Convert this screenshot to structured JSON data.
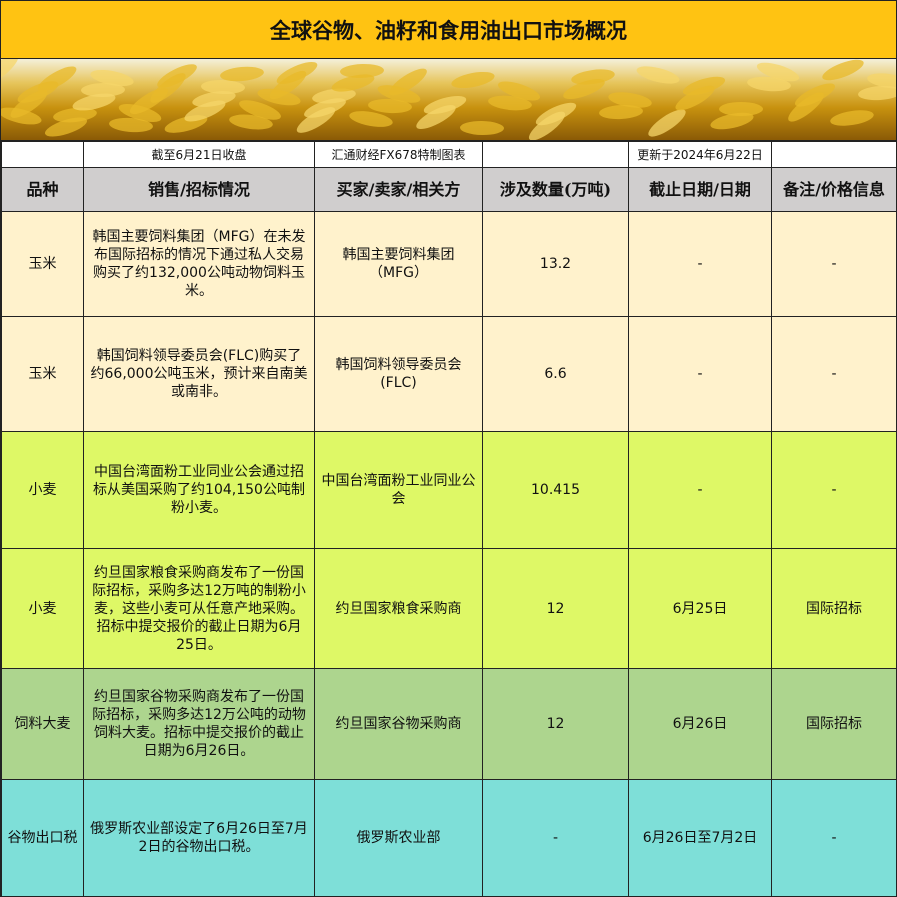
{
  "title": "全球谷物、油籽和食用油出口市场概况",
  "subheader": {
    "c1": "",
    "c2": "截至6月21日收盘",
    "c3": "汇通财经FX678特制图表",
    "c4": "",
    "c5": "更新于2024年6月22日",
    "c6": ""
  },
  "columns": [
    "品种",
    "销售/招标情况",
    "买家/卖家/相关方",
    "涉及数量(万吨)",
    "截止日期/日期",
    "备注/价格信息"
  ],
  "rows": [
    {
      "type": "corn",
      "cells": [
        "玉米",
        "韩国主要饲料集团（MFG）在未发布国际招标的情况下通过私人交易购买了约132,000公吨动物饲料玉米。",
        "韩国主要饲料集团（MFG）",
        "13.2",
        "-",
        "-"
      ]
    },
    {
      "type": "corn",
      "cells": [
        "玉米",
        "韩国饲料领导委员会(FLC)购买了约66,000公吨玉米，预计来自南美或南非。",
        "韩国饲料领导委员会(FLC)",
        "6.6",
        "-",
        "-"
      ]
    },
    {
      "type": "wheat",
      "cells": [
        "小麦",
        "中国台湾面粉工业同业公会通过招标从美国采购了约104,150公吨制粉小麦。",
        "中国台湾面粉工业同业公会",
        "10.415",
        "-",
        "-"
      ]
    },
    {
      "type": "wheat",
      "cells": [
        "小麦",
        "约旦国家粮食采购商发布了一份国际招标，采购多达12万吨的制粉小麦，这些小麦可从任意产地采购。招标中提交报价的截止日期为6月25日。",
        "约旦国家粮食采购商",
        "12",
        "6月25日",
        "国际招标"
      ]
    },
    {
      "type": "barley",
      "cells": [
        "饲料大麦",
        "约旦国家谷物采购商发布了一份国际招标，采购多达12万公吨的动物饲料大麦。招标中提交报价的截止日期为6月26日。",
        "约旦国家谷物采购商",
        "12",
        "6月26日",
        "国际招标"
      ]
    },
    {
      "type": "tax",
      "cells": [
        "谷物出口税",
        "俄罗斯农业部设定了6月26日至7月2日的谷物出口税。",
        "俄罗斯农业部",
        "-",
        "6月26日至7月2日",
        "-"
      ]
    }
  ],
  "colors": {
    "title": "#FFC312",
    "header": "#D0CECE",
    "corn": "#FFF2CC",
    "wheat": "#DEF866",
    "barley": "#ADD58E",
    "tax": "#7EDFD8"
  }
}
